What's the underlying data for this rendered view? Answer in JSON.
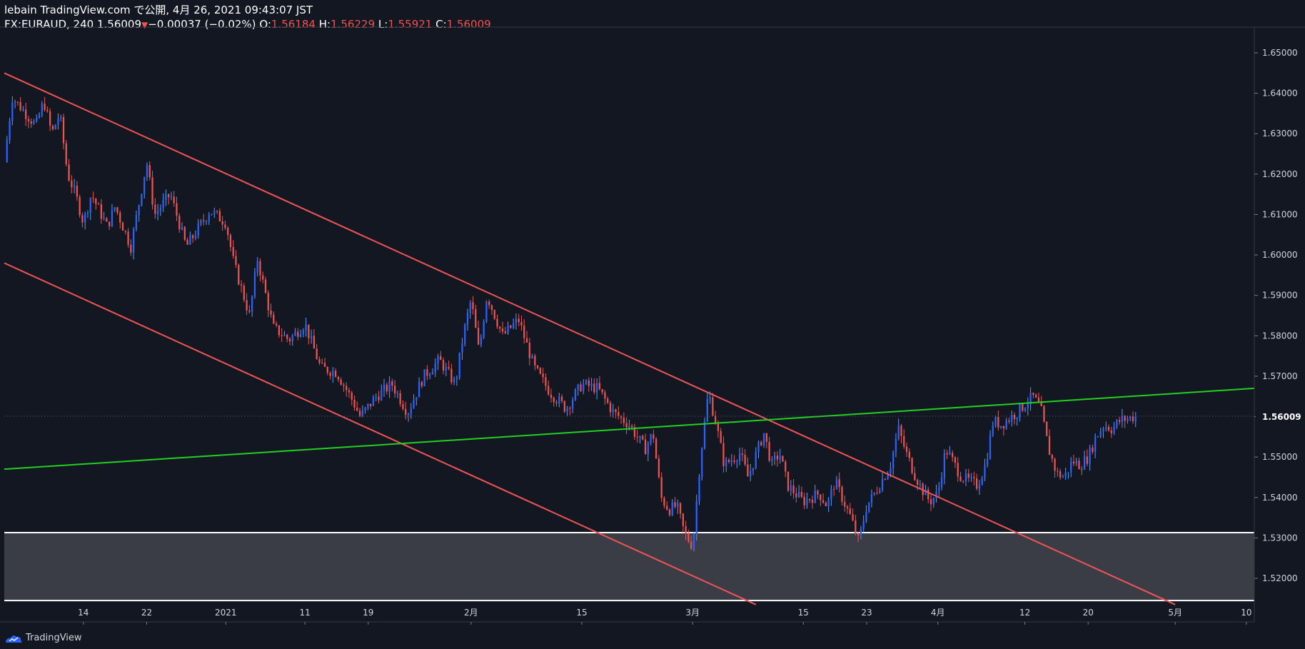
{
  "header": {
    "line1": "lebain TradingView.com で公開, 4月 26, 2021 09:43:07 JST",
    "symbol": "FX:EURAUD, 240",
    "last": "1.56009",
    "change": "−0.00037 (−0.02%)",
    "o_label": "O:",
    "o_value": "1.56184",
    "h_label": "H:",
    "h_value": "1.56229",
    "l_label": "L:",
    "l_value": "1.55921",
    "c_label": "C:",
    "c_value": "1.56009"
  },
  "footer": {
    "brand": "TradingView"
  },
  "colors": {
    "background": "#131722",
    "up": "#2962ff",
    "up_wick": "#5b9cf6",
    "down": "#ef5350",
    "channel": "#f05454",
    "trendline": "#22d11f",
    "zone_fill": "#3a3d46",
    "zone_line": "#ffffff",
    "last_price_label_bg": "#131722"
  },
  "chart_data": {
    "type": "candlestick",
    "title": "FX:EURAUD, 240",
    "ylim": [
      1.514,
      1.656
    ],
    "y_ticks": [
      "1.65000",
      "1.64000",
      "1.63000",
      "1.62000",
      "1.61000",
      "1.60000",
      "1.59000",
      "1.58000",
      "1.57000",
      "1.56000",
      "1.55000",
      "1.54000",
      "1.53000",
      "1.52000"
    ],
    "y_tick_values": [
      1.65,
      1.64,
      1.63,
      1.62,
      1.61,
      1.6,
      1.59,
      1.58,
      1.57,
      1.56,
      1.55,
      1.54,
      1.53,
      1.52
    ],
    "x_ticks": [
      "14",
      "22",
      "2021",
      "11",
      "19",
      "2月",
      "15",
      "3月",
      "15",
      "23",
      "4月",
      "12",
      "20",
      "5月",
      "10"
    ],
    "x_tick_dates": [
      "2020-12-14",
      "2020-12-22",
      "2021-01-01",
      "2021-01-11",
      "2021-01-19",
      "2021-02-01",
      "2021-02-15",
      "2021-03-01",
      "2021-03-15",
      "2021-03-23",
      "2021-04-01",
      "2021-04-12",
      "2021-04-20",
      "2021-05-01",
      "2021-05-10"
    ],
    "x_range": [
      "2020-12-04",
      "2021-05-11"
    ],
    "last_price": "1.56009",
    "last_price_value": 1.56009,
    "price_path": [
      {
        "date": "2020-12-04",
        "price": 1.623
      },
      {
        "date": "2020-12-05",
        "price": 1.639
      },
      {
        "date": "2020-12-08",
        "price": 1.632
      },
      {
        "date": "2020-12-09",
        "price": 1.638
      },
      {
        "date": "2020-12-10",
        "price": 1.63
      },
      {
        "date": "2020-12-11",
        "price": 1.635
      },
      {
        "date": "2020-12-12",
        "price": 1.62
      },
      {
        "date": "2020-12-13",
        "price": 1.615
      },
      {
        "date": "2020-12-14",
        "price": 1.608
      },
      {
        "date": "2020-12-15",
        "price": 1.615
      },
      {
        "date": "2020-12-17",
        "price": 1.607
      },
      {
        "date": "2020-12-18",
        "price": 1.612
      },
      {
        "date": "2020-12-20",
        "price": 1.602
      },
      {
        "date": "2020-12-22",
        "price": 1.623
      },
      {
        "date": "2020-12-23",
        "price": 1.61
      },
      {
        "date": "2020-12-25",
        "price": 1.615
      },
      {
        "date": "2020-12-27",
        "price": 1.602
      },
      {
        "date": "2020-12-30",
        "price": 1.611
      },
      {
        "date": "2021-01-01",
        "price": 1.608
      },
      {
        "date": "2021-01-02",
        "price": 1.598
      },
      {
        "date": "2021-01-04",
        "price": 1.585
      },
      {
        "date": "2021-01-05",
        "price": 1.599
      },
      {
        "date": "2021-01-07",
        "price": 1.582
      },
      {
        "date": "2021-01-09",
        "price": 1.579
      },
      {
        "date": "2021-01-11",
        "price": 1.583
      },
      {
        "date": "2021-01-13",
        "price": 1.572
      },
      {
        "date": "2021-01-15",
        "price": 1.571
      },
      {
        "date": "2021-01-17",
        "price": 1.564
      },
      {
        "date": "2021-01-18",
        "price": 1.56
      },
      {
        "date": "2021-01-20",
        "price": 1.565
      },
      {
        "date": "2021-01-22",
        "price": 1.568
      },
      {
        "date": "2021-01-24",
        "price": 1.561
      },
      {
        "date": "2021-01-26",
        "price": 1.57
      },
      {
        "date": "2021-01-28",
        "price": 1.574
      },
      {
        "date": "2021-01-30",
        "price": 1.568
      },
      {
        "date": "2021-01-31",
        "price": 1.58
      },
      {
        "date": "2021-02-01",
        "price": 1.589
      },
      {
        "date": "2021-02-02",
        "price": 1.576
      },
      {
        "date": "2021-02-03",
        "price": 1.59
      },
      {
        "date": "2021-02-05",
        "price": 1.58
      },
      {
        "date": "2021-02-07",
        "price": 1.584
      },
      {
        "date": "2021-02-09",
        "price": 1.572
      },
      {
        "date": "2021-02-11",
        "price": 1.566
      },
      {
        "date": "2021-02-13",
        "price": 1.562
      },
      {
        "date": "2021-02-15",
        "price": 1.568
      },
      {
        "date": "2021-02-17",
        "price": 1.567
      },
      {
        "date": "2021-02-19",
        "price": 1.561
      },
      {
        "date": "2021-02-21",
        "price": 1.558
      },
      {
        "date": "2021-02-23",
        "price": 1.552
      },
      {
        "date": "2021-02-24",
        "price": 1.556
      },
      {
        "date": "2021-02-25",
        "price": 1.54
      },
      {
        "date": "2021-02-26",
        "price": 1.537
      },
      {
        "date": "2021-02-27",
        "price": 1.538
      },
      {
        "date": "2021-02-28",
        "price": 1.531
      },
      {
        "date": "2021-03-01",
        "price": 1.528
      },
      {
        "date": "2021-03-02",
        "price": 1.55
      },
      {
        "date": "2021-03-03",
        "price": 1.566
      },
      {
        "date": "2021-03-04",
        "price": 1.558
      },
      {
        "date": "2021-03-05",
        "price": 1.548
      },
      {
        "date": "2021-03-07",
        "price": 1.551
      },
      {
        "date": "2021-03-08",
        "price": 1.545
      },
      {
        "date": "2021-03-10",
        "price": 1.556
      },
      {
        "date": "2021-03-11",
        "price": 1.548
      },
      {
        "date": "2021-03-12",
        "price": 1.551
      },
      {
        "date": "2021-03-13",
        "price": 1.543
      },
      {
        "date": "2021-03-15",
        "price": 1.539
      },
      {
        "date": "2021-03-17",
        "price": 1.541
      },
      {
        "date": "2021-03-18",
        "price": 1.538
      },
      {
        "date": "2021-03-19",
        "price": 1.544
      },
      {
        "date": "2021-03-21",
        "price": 1.535
      },
      {
        "date": "2021-03-22",
        "price": 1.529
      },
      {
        "date": "2021-03-23",
        "price": 1.538
      },
      {
        "date": "2021-03-24",
        "price": 1.541
      },
      {
        "date": "2021-03-26",
        "price": 1.548
      },
      {
        "date": "2021-03-27",
        "price": 1.557
      },
      {
        "date": "2021-03-28",
        "price": 1.551
      },
      {
        "date": "2021-03-29",
        "price": 1.546
      },
      {
        "date": "2021-03-30",
        "price": 1.542
      },
      {
        "date": "2021-03-31",
        "price": 1.539
      },
      {
        "date": "2021-04-01",
        "price": 1.541
      },
      {
        "date": "2021-04-02",
        "price": 1.552
      },
      {
        "date": "2021-04-04",
        "price": 1.545
      },
      {
        "date": "2021-04-06",
        "price": 1.543
      },
      {
        "date": "2021-04-07",
        "price": 1.548
      },
      {
        "date": "2021-04-08",
        "price": 1.559
      },
      {
        "date": "2021-04-09",
        "price": 1.558
      },
      {
        "date": "2021-04-11",
        "price": 1.561
      },
      {
        "date": "2021-04-12",
        "price": 1.563
      },
      {
        "date": "2021-04-13",
        "price": 1.565
      },
      {
        "date": "2021-04-14",
        "price": 1.562
      },
      {
        "date": "2021-04-15",
        "price": 1.552
      },
      {
        "date": "2021-04-16",
        "price": 1.546
      },
      {
        "date": "2021-04-17",
        "price": 1.545
      },
      {
        "date": "2021-04-18",
        "price": 1.549
      },
      {
        "date": "2021-04-19",
        "price": 1.548
      },
      {
        "date": "2021-04-20",
        "price": 1.55
      },
      {
        "date": "2021-04-21",
        "price": 1.555
      },
      {
        "date": "2021-04-22",
        "price": 1.558
      },
      {
        "date": "2021-04-23",
        "price": 1.557
      },
      {
        "date": "2021-04-24",
        "price": 1.559
      },
      {
        "date": "2021-04-26",
        "price": 1.56009
      }
    ],
    "drawings": {
      "channel_upper": {
        "start": {
          "date": "2020-12-04",
          "price": 1.645
        },
        "end": {
          "date": "2021-05-01",
          "price": 1.5135
        }
      },
      "channel_lower": {
        "start": {
          "date": "2020-12-04",
          "price": 1.598
        },
        "end": {
          "date": "2021-03-09",
          "price": 1.5135
        }
      },
      "trendline": {
        "start": {
          "date": "2020-12-04",
          "price": 1.547
        },
        "end": {
          "date": "2021-05-11",
          "price": 1.567
        }
      },
      "support_zone": {
        "top": 1.5313,
        "bottom": 1.5145
      }
    }
  }
}
